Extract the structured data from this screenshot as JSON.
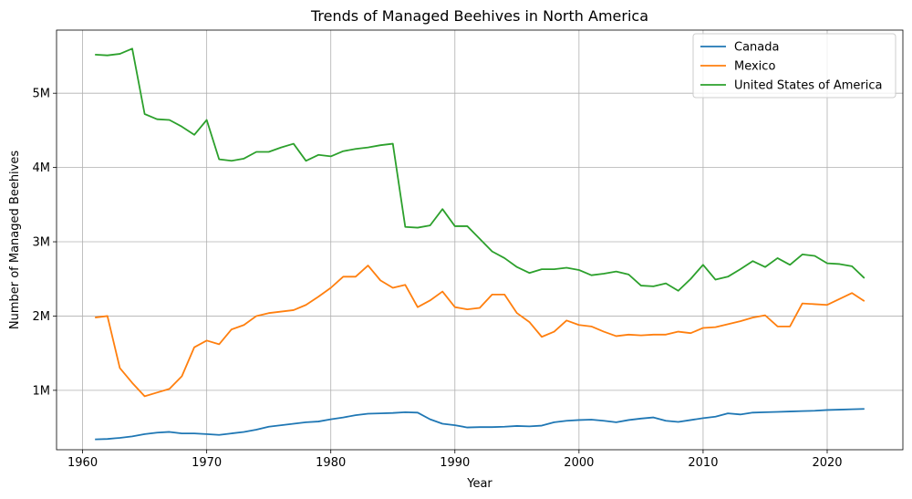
{
  "chart_data": {
    "type": "line",
    "title": "Trends of Managed Beehives in North America",
    "xlabel": "Year",
    "ylabel": "Number of Managed Beehives",
    "xlim": [
      1957.9,
      2026.1
    ],
    "ylim": [
      0.2,
      5.85
    ],
    "x_ticks": [
      1960,
      1970,
      1980,
      1990,
      2000,
      2010,
      2020
    ],
    "y_ticks": [
      1,
      2,
      3,
      4,
      5
    ],
    "y_tick_labels": [
      "1M",
      "2M",
      "3M",
      "4M",
      "5M"
    ],
    "grid": true,
    "legend_position": "upper right",
    "years": [
      1961,
      1962,
      1963,
      1964,
      1965,
      1966,
      1967,
      1968,
      1969,
      1970,
      1971,
      1972,
      1973,
      1974,
      1975,
      1976,
      1977,
      1978,
      1979,
      1980,
      1981,
      1982,
      1983,
      1984,
      1985,
      1986,
      1987,
      1988,
      1989,
      1990,
      1991,
      1992,
      1993,
      1994,
      1995,
      1996,
      1997,
      1998,
      1999,
      2000,
      2001,
      2002,
      2003,
      2004,
      2005,
      2006,
      2007,
      2008,
      2009,
      2010,
      2011,
      2012,
      2013,
      2014,
      2015,
      2016,
      2017,
      2018,
      2019,
      2020,
      2021,
      2022,
      2023
    ],
    "series": [
      {
        "name": "Canada",
        "color": "#1f77b4",
        "values": [
          0.34,
          0.345,
          0.36,
          0.38,
          0.41,
          0.43,
          0.44,
          0.42,
          0.42,
          0.41,
          0.4,
          0.42,
          0.44,
          0.47,
          0.51,
          0.53,
          0.55,
          0.57,
          0.58,
          0.61,
          0.635,
          0.665,
          0.685,
          0.69,
          0.695,
          0.705,
          0.7,
          0.61,
          0.55,
          0.53,
          0.5,
          0.505,
          0.505,
          0.51,
          0.52,
          0.515,
          0.525,
          0.57,
          0.59,
          0.6,
          0.605,
          0.59,
          0.57,
          0.6,
          0.62,
          0.635,
          0.59,
          0.575,
          0.6,
          0.625,
          0.645,
          0.69,
          0.675,
          0.7,
          0.705,
          0.71,
          0.715,
          0.72,
          0.725,
          0.735,
          0.74,
          0.745,
          0.75
        ]
      },
      {
        "name": "Mexico",
        "color": "#ff7f0e",
        "values": [
          1.98,
          2.0,
          1.3,
          1.1,
          0.92,
          0.97,
          1.02,
          1.19,
          1.58,
          1.67,
          1.62,
          1.82,
          1.88,
          2.0,
          2.04,
          2.06,
          2.08,
          2.15,
          2.26,
          2.38,
          2.53,
          2.53,
          2.68,
          2.48,
          2.38,
          2.42,
          2.12,
          2.21,
          2.33,
          2.12,
          2.09,
          2.11,
          2.29,
          2.29,
          2.04,
          1.92,
          1.72,
          1.79,
          1.94,
          1.88,
          1.86,
          1.79,
          1.73,
          1.75,
          1.74,
          1.75,
          1.75,
          1.79,
          1.77,
          1.84,
          1.85,
          1.89,
          1.93,
          1.98,
          2.01,
          1.86,
          1.86,
          2.17,
          2.16,
          2.15,
          2.23,
          2.31,
          2.2
        ]
      },
      {
        "name": "United States of America",
        "color": "#2ca02c",
        "values": [
          5.52,
          5.51,
          5.53,
          5.6,
          4.72,
          4.65,
          4.64,
          4.55,
          4.44,
          4.64,
          4.11,
          4.09,
          4.12,
          4.21,
          4.21,
          4.27,
          4.32,
          4.09,
          4.17,
          4.15,
          4.22,
          4.25,
          4.27,
          4.3,
          4.32,
          3.2,
          3.19,
          3.22,
          3.44,
          3.21,
          3.21,
          3.04,
          2.87,
          2.78,
          2.66,
          2.58,
          2.63,
          2.63,
          2.65,
          2.62,
          2.55,
          2.57,
          2.6,
          2.56,
          2.41,
          2.4,
          2.44,
          2.34,
          2.5,
          2.69,
          2.49,
          2.53,
          2.63,
          2.74,
          2.66,
          2.78,
          2.69,
          2.83,
          2.81,
          2.71,
          2.7,
          2.67,
          2.51
        ]
      }
    ]
  }
}
